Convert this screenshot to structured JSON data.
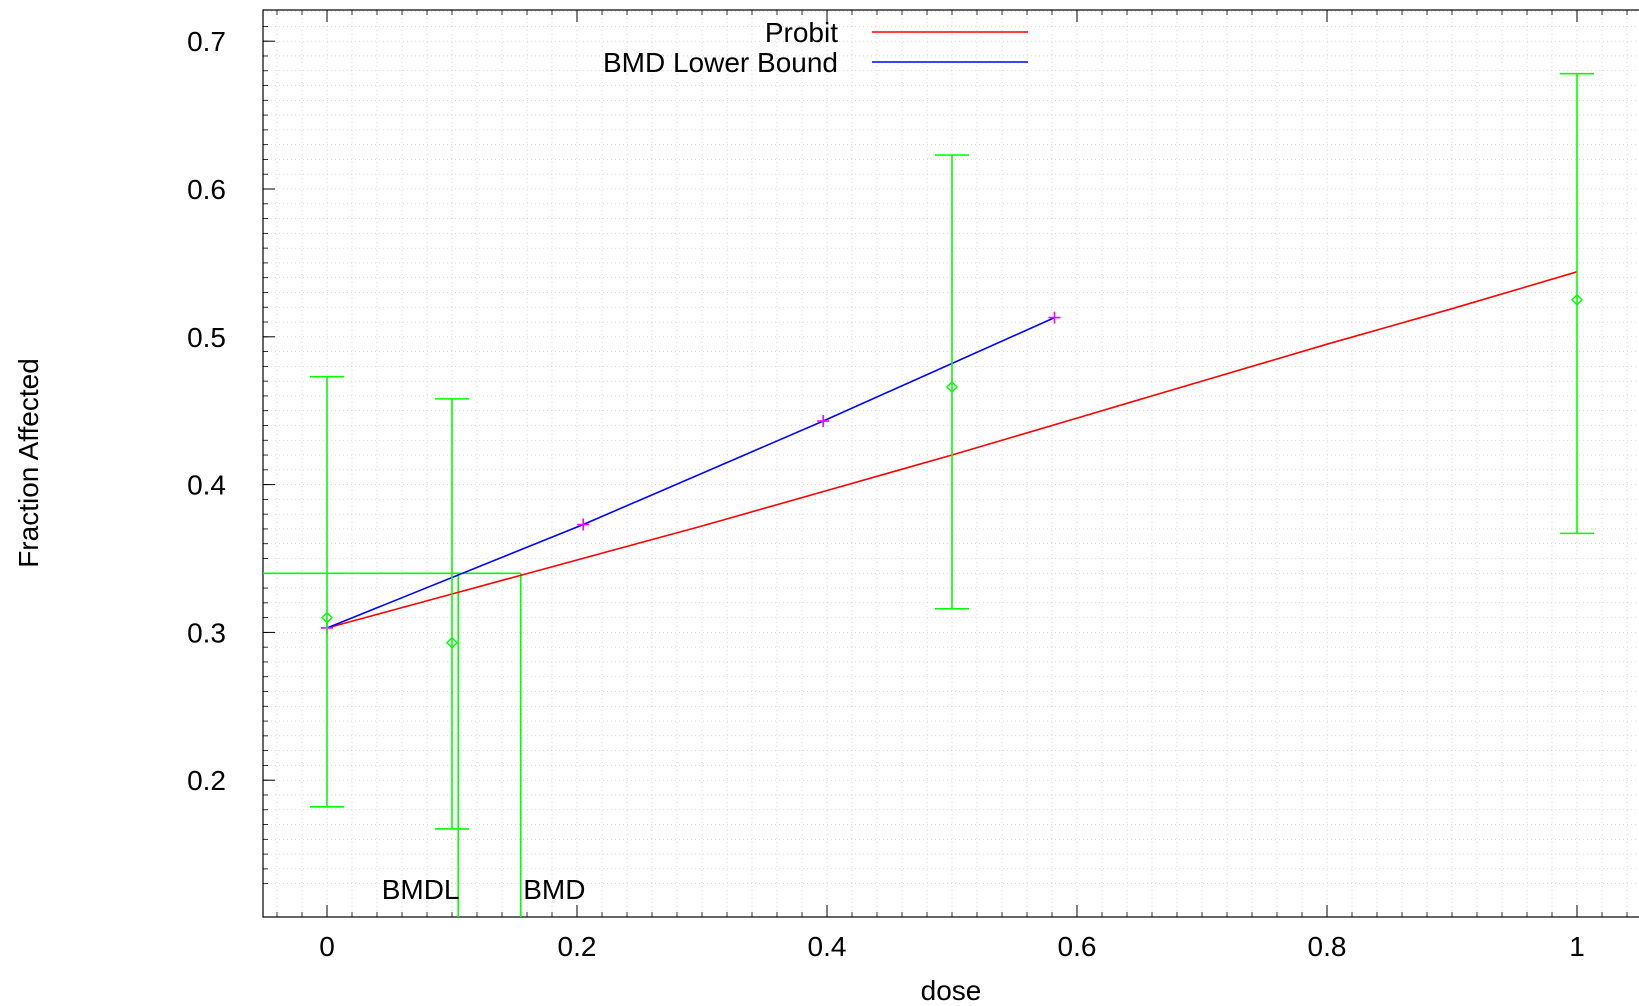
{
  "chart_data": {
    "type": "line",
    "title": "",
    "xlabel": "dose",
    "ylabel": "Fraction Affected",
    "xlim": [
      -0.05,
      1.05
    ],
    "ylim": [
      0.12,
      0.73
    ],
    "x_ticks": [
      {
        "value": 0,
        "label": "0"
      },
      {
        "value": 0.2,
        "label": "0.2"
      },
      {
        "value": 0.4,
        "label": "0.4"
      },
      {
        "value": 0.6,
        "label": "0.6"
      },
      {
        "value": 0.8,
        "label": "0.8"
      },
      {
        "value": 1,
        "label": "1"
      }
    ],
    "y_ticks": [
      {
        "value": 0.2,
        "label": "0.2"
      },
      {
        "value": 0.3,
        "label": "0.3"
      },
      {
        "value": 0.4,
        "label": "0.4"
      },
      {
        "value": 0.5,
        "label": "0.5"
      },
      {
        "value": 0.6,
        "label": "0.6"
      },
      {
        "value": 0.7,
        "label": "0.7"
      }
    ],
    "grid": true,
    "legend_position": "top-center",
    "series": [
      {
        "name": "Probit",
        "kind": "line",
        "color": "#ff0000",
        "x": [
          0,
          0.1,
          0.2,
          0.3,
          0.4,
          0.5,
          0.6,
          0.7,
          0.8,
          0.9,
          1.0
        ],
        "y": [
          0.303,
          0.326,
          0.349,
          0.372,
          0.396,
          0.42,
          0.445,
          0.47,
          0.495,
          0.519,
          0.544
        ]
      },
      {
        "name": "BMD Lower Bound",
        "kind": "line_with_markers",
        "color": "#0000ff",
        "marker_color": "#ff00ff",
        "x": [
          0,
          0.205,
          0.397,
          0.582
        ],
        "y": [
          0.303,
          0.373,
          0.443,
          0.513
        ]
      },
      {
        "name": "",
        "kind": "errorbars",
        "color": "#00ff00",
        "x": [
          0,
          0.1,
          0.5,
          1.0
        ],
        "y": [
          0.31,
          0.293,
          0.466,
          0.525
        ],
        "lower": [
          0.182,
          0.167,
          0.316,
          0.367
        ],
        "upper": [
          0.473,
          0.458,
          0.623,
          0.678
        ]
      }
    ],
    "bmr_response": 0.34,
    "bmd": 0.155,
    "bmdl": 0.105,
    "annotations": [
      {
        "text": "BMDL",
        "x": 0.106
      },
      {
        "text": "BMD",
        "x": 0.157
      }
    ]
  }
}
